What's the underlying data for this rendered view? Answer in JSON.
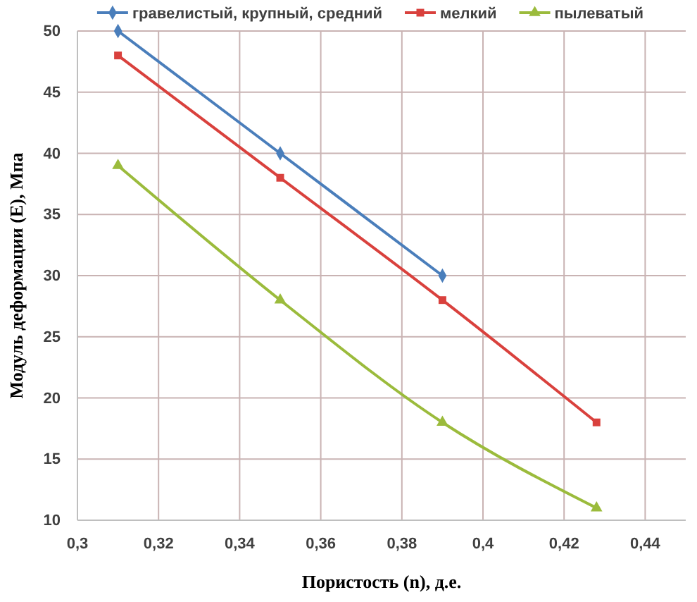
{
  "chart_data": {
    "type": "line",
    "xlabel": "Пористость (n), д.е.",
    "ylabel": "Модуль деформации (E), Мпа",
    "xlim": [
      0.3,
      0.45
    ],
    "xticks": [
      {
        "value": 0.3,
        "label": "0,3"
      },
      {
        "value": 0.32,
        "label": "0,32"
      },
      {
        "value": 0.34,
        "label": "0,34"
      },
      {
        "value": 0.36,
        "label": "0,36"
      },
      {
        "value": 0.38,
        "label": "0,38"
      },
      {
        "value": 0.4,
        "label": "0,4"
      },
      {
        "value": 0.42,
        "label": "0,42"
      },
      {
        "value": 0.44,
        "label": "0,44"
      }
    ],
    "ylim": [
      10,
      50
    ],
    "yticks": [
      10,
      15,
      20,
      25,
      30,
      35,
      40,
      45,
      50
    ],
    "grid": true,
    "legend": "top",
    "series": [
      {
        "name": "гравелистый, крупный, средний",
        "color": "#4a7ebb",
        "marker": "diamond",
        "x": [
          0.31,
          0.35,
          0.39
        ],
        "values": [
          50,
          40,
          30
        ]
      },
      {
        "name": "мелкий",
        "color": "#d9413d",
        "marker": "square",
        "x": [
          0.31,
          0.35,
          0.39,
          0.428
        ],
        "values": [
          48,
          38,
          28,
          18
        ]
      },
      {
        "name": "пылеватый",
        "color": "#9bbb3c",
        "marker": "triangle",
        "x": [
          0.31,
          0.35,
          0.39,
          0.428
        ],
        "values": [
          39,
          28,
          18,
          11
        ]
      }
    ]
  }
}
